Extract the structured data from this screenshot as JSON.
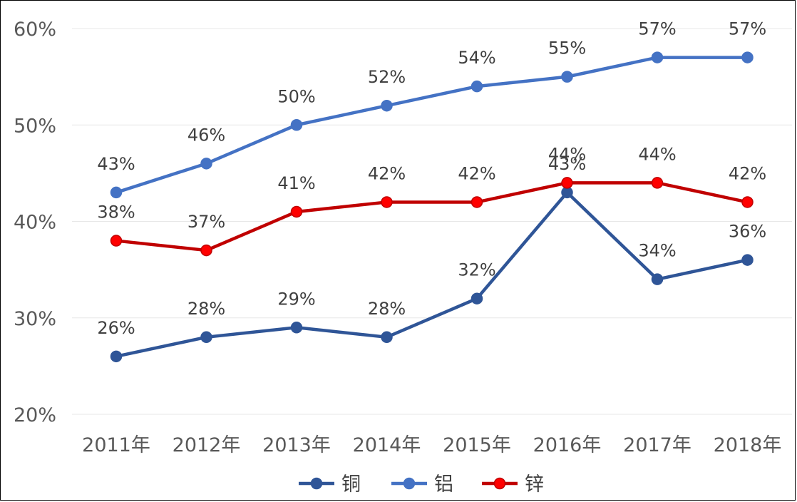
{
  "chart_data": {
    "type": "line",
    "title": "",
    "xlabel": "",
    "ylabel": "",
    "categories": [
      "2011年",
      "2012年",
      "2013年",
      "2014年",
      "2015年",
      "2016年",
      "2017年",
      "2018年"
    ],
    "y_ticks": [
      "20%",
      "30%",
      "40%",
      "50%",
      "60%"
    ],
    "ylim": [
      20,
      60
    ],
    "grid": true,
    "legend_position": "bottom",
    "data_labels": true,
    "series": [
      {
        "name": "铜",
        "color": "#2F5597",
        "values": [
          26,
          28,
          29,
          28,
          32,
          43,
          34,
          36
        ]
      },
      {
        "name": "铝",
        "color": "#4472C4",
        "values": [
          43,
          46,
          50,
          52,
          54,
          55,
          57,
          57
        ]
      },
      {
        "name": "锌",
        "color": "#C00000",
        "marker_fill": "#FF0000",
        "values": [
          38,
          37,
          41,
          42,
          42,
          44,
          44,
          42
        ]
      }
    ]
  }
}
